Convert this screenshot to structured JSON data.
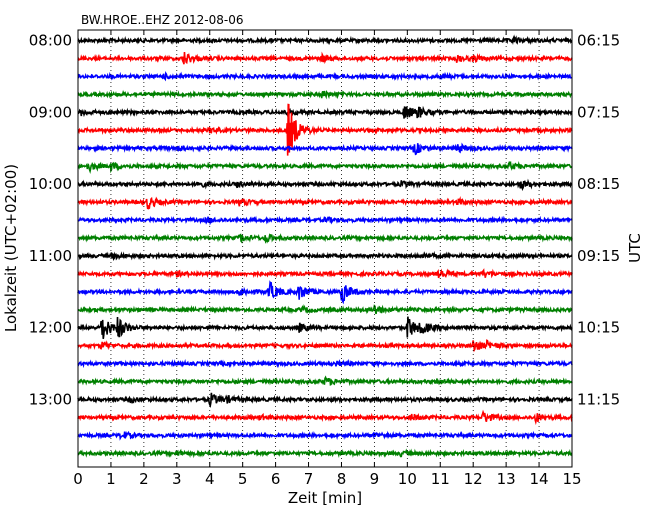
{
  "chart_data": {
    "type": "line",
    "title": "BW.HROE..EHZ 2012-08-06",
    "xlabel": "Zeit  [min]",
    "ylabel_left": "Lokalzeit (UTC+02:00)",
    "ylabel_right": "UTC",
    "xlim": [
      0,
      15
    ],
    "x_ticks": [
      "0",
      "1",
      "2",
      "3",
      "4",
      "5",
      "6",
      "7",
      "8",
      "9",
      "10",
      "11",
      "12",
      "13",
      "14",
      "15"
    ],
    "grid": "vertical dotted at each minute",
    "left_tick_labels": [
      "08:00",
      "09:00",
      "10:00",
      "11:00",
      "12:00",
      "13:00"
    ],
    "right_tick_labels": [
      "06:15",
      "07:15",
      "08:15",
      "09:15",
      "10:15",
      "11:15"
    ],
    "trace_colors": [
      "#000000",
      "#ff0000",
      "#0000ff",
      "#008000"
    ],
    "trace_count": 24,
    "trace_minutes": 15,
    "traces": [
      {
        "events": [
          [
            13.2,
            1.5
          ]
        ]
      },
      {
        "events": [
          [
            3.2,
            4.0
          ],
          [
            7.4,
            2.0
          ],
          [
            11.5,
            2.0
          ],
          [
            12.0,
            1.5
          ]
        ]
      },
      {
        "events": [
          [
            2.6,
            1.2
          ],
          [
            11.0,
            1.0
          ]
        ]
      },
      {
        "events": [
          [
            7.4,
            2.0
          ]
        ]
      },
      {
        "events": [
          [
            0.1,
            1.5
          ],
          [
            6.3,
            1.5
          ],
          [
            9.9,
            5.0
          ],
          [
            10.3,
            3.0
          ]
        ]
      },
      {
        "events": [
          [
            4.0,
            1.2
          ],
          [
            6.35,
            20.0
          ]
        ]
      },
      {
        "events": [
          [
            10.2,
            4.0
          ],
          [
            11.5,
            2.5
          ],
          [
            3.0,
            1.2
          ]
        ]
      },
      {
        "events": [
          [
            0.3,
            3.0
          ],
          [
            1.0,
            2.0
          ],
          [
            13.1,
            2.0
          ]
        ]
      },
      {
        "events": [
          [
            3.6,
            2.0
          ],
          [
            4.8,
            1.8
          ],
          [
            9.8,
            1.5
          ],
          [
            13.4,
            3.0
          ]
        ]
      },
      {
        "events": [
          [
            2.1,
            4.0
          ],
          [
            4.9,
            2.0
          ],
          [
            11.5,
            1.5
          ]
        ]
      },
      {
        "events": [
          [
            3.9,
            1.5
          ],
          [
            7.5,
            1.5
          ]
        ]
      },
      {
        "events": [
          [
            4.9,
            2.5
          ],
          [
            5.7,
            2.5
          ]
        ]
      },
      {
        "events": [
          [
            1.0,
            1.5
          ],
          [
            10.5,
            1.2
          ]
        ]
      },
      {
        "events": [
          [
            3.0,
            1.2
          ],
          [
            10.9,
            4.0
          ],
          [
            12.3,
            2.0
          ]
        ]
      },
      {
        "events": [
          [
            5.8,
            6.0
          ],
          [
            6.7,
            5.0
          ],
          [
            8.0,
            7.0
          ],
          [
            4.9,
            2.5
          ]
        ]
      },
      {
        "events": [
          [
            9.0,
            3.0
          ],
          [
            6.8,
            1.5
          ]
        ]
      },
      {
        "events": [
          [
            0.7,
            9.0
          ],
          [
            1.2,
            6.0
          ],
          [
            10.0,
            7.0
          ],
          [
            10.4,
            3.5
          ],
          [
            6.7,
            2.5
          ]
        ]
      },
      {
        "events": [
          [
            0.7,
            2.0
          ],
          [
            12.0,
            3.5
          ],
          [
            12.4,
            2.0
          ]
        ]
      },
      {
        "events": [
          [
            7.8,
            1.2
          ]
        ]
      },
      {
        "events": [
          [
            7.5,
            2.5
          ],
          [
            10.9,
            1.5
          ]
        ]
      },
      {
        "events": [
          [
            4.0,
            4.0
          ],
          [
            4.5,
            1.5
          ],
          [
            1.6,
            1.2
          ]
        ]
      },
      {
        "events": [
          [
            10.1,
            2.0
          ],
          [
            12.3,
            3.5
          ],
          [
            13.9,
            2.5
          ],
          [
            5.5,
            1.2
          ]
        ]
      },
      {
        "events": [
          [
            1.3,
            2.5
          ],
          [
            9.0,
            1.5
          ]
        ]
      },
      {
        "events": [
          [
            9.8,
            1.2
          ],
          [
            3.0,
            1.1
          ]
        ]
      }
    ]
  }
}
